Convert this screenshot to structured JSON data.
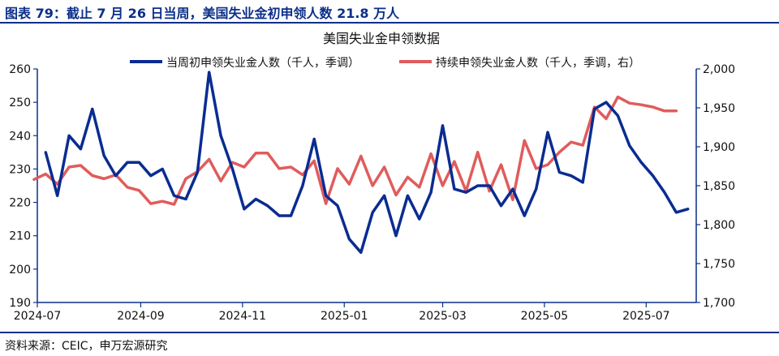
{
  "figure": {
    "title": "图表 79：截止 7 月 26 日当周，美国失业金初申领人数 21.8 万人",
    "source": "资料来源：CEIC，申万宏源研究"
  },
  "colors": {
    "accent": "#0b2f8a",
    "initial_claims": "#0a2c91",
    "continuing_claims": "#e05c5c"
  },
  "chart_data": {
    "type": "line",
    "title": "美国失业金申领数据",
    "legend_position": "top",
    "grid": false,
    "xaxis": {
      "ticks": [
        "2024-07",
        "2024-09",
        "2024-11",
        "2025-01",
        "2025-03",
        "2025-05",
        "2025-07"
      ],
      "range": [
        "2024-07-01",
        "2025-07-31"
      ]
    },
    "yaxis_left": {
      "ylim": [
        190,
        260
      ],
      "ticks": [
        "190",
        "200",
        "210",
        "220",
        "230",
        "240",
        "250",
        "260"
      ]
    },
    "yaxis_right": {
      "ylim": [
        1700,
        2000
      ],
      "ticks": [
        "1,700",
        "1,750",
        "1,800",
        "1,850",
        "1,900",
        "1,950",
        "2,000"
      ]
    },
    "series": [
      {
        "name": "当周初申领失业金人数（千人，季调）",
        "axis": "left",
        "x": [
          "2024-07-06",
          "2024-07-13",
          "2024-07-20",
          "2024-07-27",
          "2024-08-03",
          "2024-08-10",
          "2024-08-17",
          "2024-08-24",
          "2024-08-31",
          "2024-09-07",
          "2024-09-14",
          "2024-09-21",
          "2024-09-28",
          "2024-10-05",
          "2024-10-12",
          "2024-10-19",
          "2024-10-26",
          "2024-11-02",
          "2024-11-09",
          "2024-11-16",
          "2024-11-23",
          "2024-11-30",
          "2024-12-07",
          "2024-12-14",
          "2024-12-21",
          "2024-12-28",
          "2025-01-04",
          "2025-01-11",
          "2025-01-18",
          "2025-01-25",
          "2025-02-01",
          "2025-02-08",
          "2025-02-15",
          "2025-02-22",
          "2025-03-01",
          "2025-03-08",
          "2025-03-15",
          "2025-03-22",
          "2025-03-29",
          "2025-04-05",
          "2025-04-12",
          "2025-04-19",
          "2025-04-26",
          "2025-05-03",
          "2025-05-10",
          "2025-05-17",
          "2025-05-24",
          "2025-05-31",
          "2025-06-07",
          "2025-06-14",
          "2025-06-21",
          "2025-06-28",
          "2025-07-05",
          "2025-07-12",
          "2025-07-19",
          "2025-07-26"
        ],
        "values": [
          235,
          222,
          240,
          236,
          248,
          234,
          228,
          232,
          232,
          228,
          230,
          222,
          221,
          229,
          259,
          240,
          230,
          218,
          221,
          219,
          216,
          216,
          225,
          239,
          222,
          219,
          209,
          205,
          217,
          222,
          210,
          222,
          215,
          223,
          243,
          224,
          223,
          225,
          225,
          219,
          224,
          216,
          224,
          241,
          229,
          228,
          226,
          248,
          250,
          246,
          237,
          232,
          228,
          223,
          217,
          218
        ]
      },
      {
        "name": "持续申领失业金人数（千人，季调，右）",
        "axis": "right",
        "x": [
          "2024-06-29",
          "2024-07-06",
          "2024-07-13",
          "2024-07-20",
          "2024-07-27",
          "2024-08-03",
          "2024-08-10",
          "2024-08-17",
          "2024-08-24",
          "2024-08-31",
          "2024-09-07",
          "2024-09-14",
          "2024-09-21",
          "2024-09-28",
          "2024-10-05",
          "2024-10-12",
          "2024-10-19",
          "2024-10-26",
          "2024-11-02",
          "2024-11-09",
          "2024-11-16",
          "2024-11-23",
          "2024-11-30",
          "2024-12-07",
          "2024-12-14",
          "2024-12-21",
          "2024-12-28",
          "2025-01-04",
          "2025-01-11",
          "2025-01-18",
          "2025-01-25",
          "2025-02-01",
          "2025-02-08",
          "2025-02-15",
          "2025-02-22",
          "2025-03-01",
          "2025-03-08",
          "2025-03-15",
          "2025-03-22",
          "2025-03-29",
          "2025-04-05",
          "2025-04-12",
          "2025-04-19",
          "2025-04-26",
          "2025-05-03",
          "2025-05-10",
          "2025-05-17",
          "2025-05-24",
          "2025-05-31",
          "2025-06-07",
          "2025-06-14",
          "2025-06-21",
          "2025-06-28",
          "2025-07-05",
          "2025-07-12",
          "2025-07-19"
        ],
        "values": [
          1858,
          1865,
          1852,
          1874,
          1876,
          1863,
          1859,
          1864,
          1848,
          1844,
          1827,
          1830,
          1826,
          1859,
          1868,
          1884,
          1856,
          1880,
          1874,
          1892,
          1892,
          1872,
          1874,
          1864,
          1882,
          1827,
          1872,
          1852,
          1888,
          1850,
          1874,
          1838,
          1861,
          1848,
          1891,
          1850,
          1881,
          1843,
          1893,
          1843,
          1877,
          1832,
          1908,
          1872,
          1877,
          1893,
          1906,
          1902,
          1951,
          1936,
          1964,
          1956,
          1954,
          1951,
          1946,
          1946
        ]
      }
    ]
  }
}
